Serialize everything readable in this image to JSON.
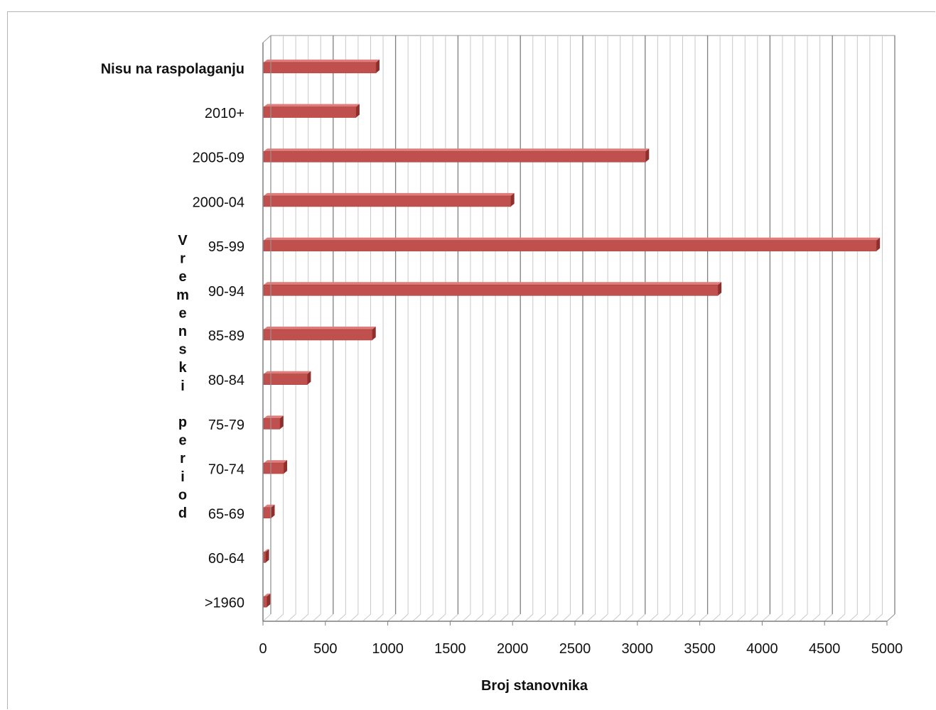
{
  "chart_data": {
    "type": "bar",
    "orientation": "horizontal",
    "three_d": true,
    "categories": [
      ">1960",
      "60-64",
      "65-69",
      "70-74",
      "75-79",
      "80-84",
      "85-89",
      "90-94",
      "95-99",
      "2000-04",
      "2005-09",
      "2010+",
      "Nisu na raspolaganju"
    ],
    "values": [
      25,
      15,
      60,
      160,
      130,
      350,
      870,
      3640,
      4910,
      1980,
      3060,
      740,
      900
    ],
    "title": "",
    "xlabel": "Broj stanovnika",
    "ylabel": "Vremenski period",
    "xlim": [
      0,
      5000
    ],
    "xticks": [
      "0",
      "500",
      "1000",
      "1500",
      "2000",
      "2500",
      "3000",
      "3500",
      "4000",
      "4500",
      "5000"
    ],
    "grid": true,
    "legend": "none",
    "colors": {
      "bar": "#c0504d",
      "bar_top": "#e07c79",
      "bar_side": "#8f2f2c",
      "grid_major": "#7f7f7f",
      "grid_minor": "#c8c8c8"
    }
  }
}
